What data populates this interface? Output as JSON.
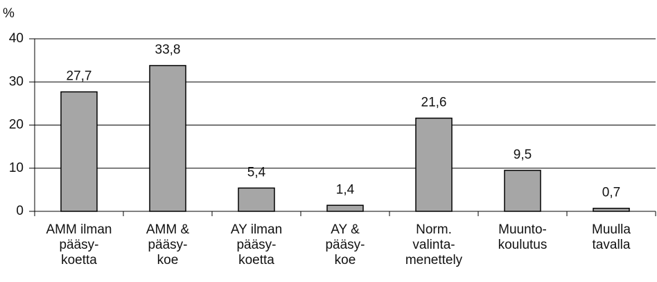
{
  "chart_data": {
    "type": "bar",
    "y_label": "%",
    "categories": [
      [
        "AMM ilman",
        "pääsy-",
        "koetta"
      ],
      [
        "AMM &",
        "pääsy-",
        "koe"
      ],
      [
        "AY ilman",
        "pääsy-",
        "koetta"
      ],
      [
        "AY &",
        "pääsy-",
        "koe"
      ],
      [
        "Norm.",
        "valinta-",
        "menettely"
      ],
      [
        "Muunto-",
        "koulutus"
      ],
      [
        "Muulla",
        "tavalla"
      ]
    ],
    "values": [
      27.7,
      33.8,
      5.4,
      1.4,
      21.6,
      9.5,
      0.7
    ],
    "value_labels": [
      "27,7",
      "33,8",
      "5,4",
      "1,4",
      "21,6",
      "9,5",
      "0,7"
    ],
    "color": "#a6a6a6",
    "ylim": [
      0,
      40
    ],
    "yticks": [
      0,
      10,
      20,
      30,
      40
    ],
    "grid": true
  }
}
